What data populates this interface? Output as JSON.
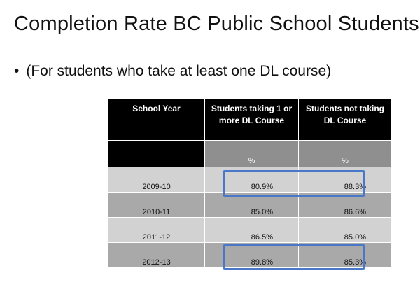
{
  "title": "Completion Rate BC Public School Students",
  "bullet": {
    "symbol": "•",
    "text": "(For students who take at least one DL course)"
  },
  "table": {
    "headers": [
      "School Year",
      "Students taking 1 or more DL Course",
      "Students not taking DL Course"
    ],
    "unit_row": [
      "",
      "%",
      "%"
    ],
    "rows": [
      {
        "year": "2009-10",
        "dl": "80.9%",
        "no_dl": "88.3%",
        "highlighted": true
      },
      {
        "year": "2010-11",
        "dl": "85.0%",
        "no_dl": "86.6%",
        "highlighted": false
      },
      {
        "year": "2011-12",
        "dl": "86.5%",
        "no_dl": "85.0%",
        "highlighted": false
      },
      {
        "year": "2012-13",
        "dl": "89.8%",
        "no_dl": "85.3%",
        "highlighted": true
      }
    ]
  },
  "colors": {
    "header_bg": "#000000",
    "row_light": "#d2d2d2",
    "row_dark": "#a9a9a9",
    "highlight": "#4a78c9"
  }
}
